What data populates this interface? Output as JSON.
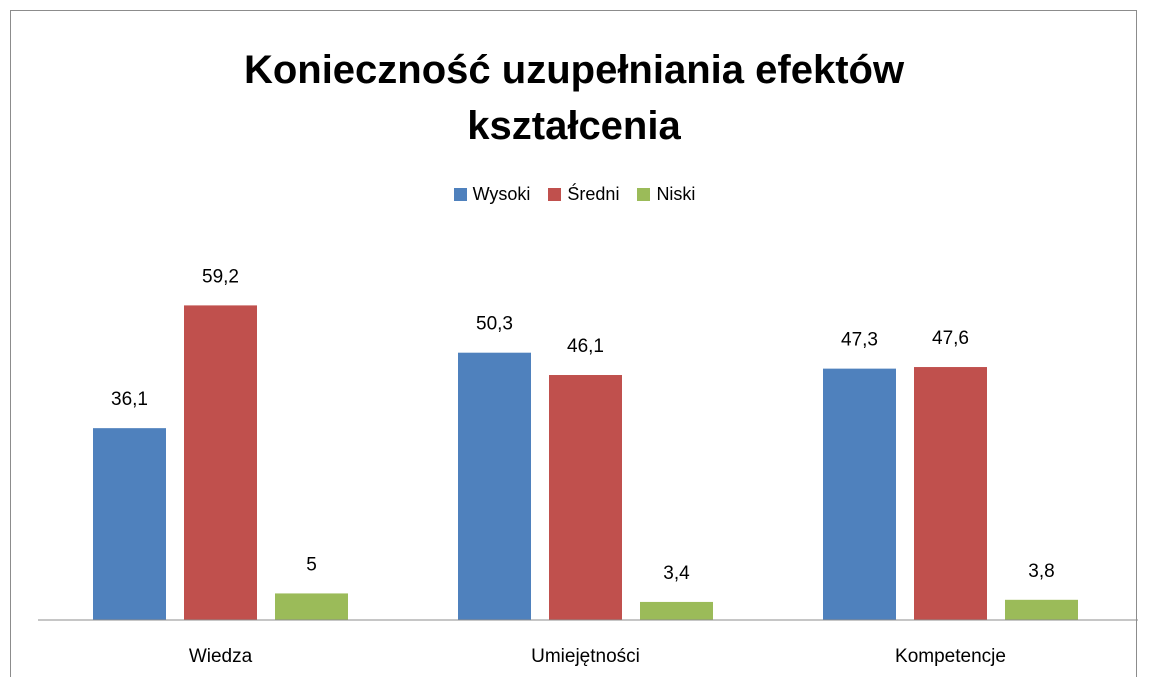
{
  "chart_data": {
    "type": "bar",
    "title": "Konieczność uzupełniania efektów kształcenia",
    "categories": [
      "Wiedza",
      "Umiejętności",
      "Kompetencje"
    ],
    "series": [
      {
        "name": "Wysoki",
        "color": "#4f81bd",
        "values": [
          36.1,
          50.3,
          47.3
        ],
        "value_labels": [
          "36,1",
          "50,3",
          "47,3"
        ]
      },
      {
        "name": "Średni",
        "color": "#c0504d",
        "values": [
          59.2,
          46.1,
          47.6
        ],
        "value_labels": [
          "59,2",
          "46,1",
          "47,6"
        ]
      },
      {
        "name": "Niski",
        "color": "#9bbb59",
        "values": [
          5,
          3.4,
          3.8
        ],
        "value_labels": [
          "5",
          "3,4",
          "3,8"
        ]
      }
    ],
    "ylim": [
      0,
      70
    ],
    "legend": "top"
  }
}
